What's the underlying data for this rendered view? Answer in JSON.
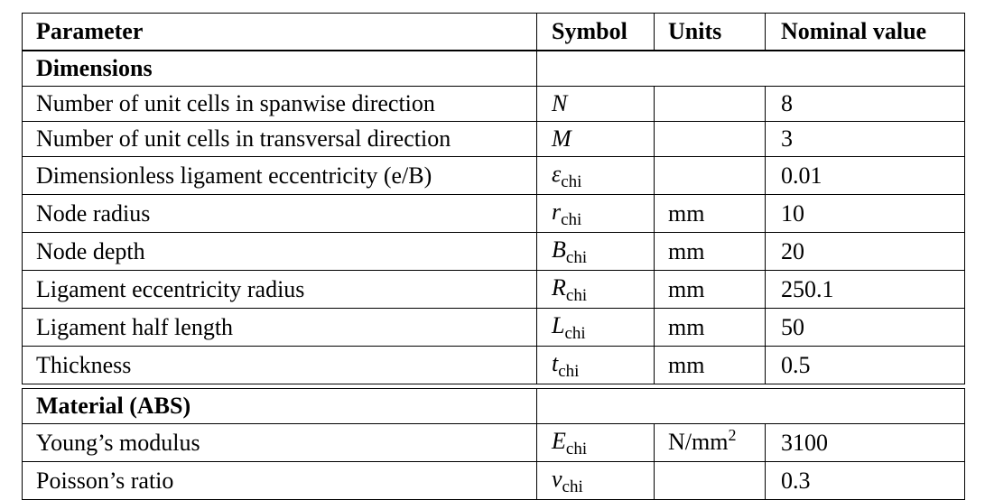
{
  "header": {
    "parameter": "Parameter",
    "symbol": "Symbol",
    "units": "Units",
    "nominal_value": "Nominal value"
  },
  "sections": [
    {
      "title": "Dimensions",
      "rows": [
        {
          "parameter": "Number of unit cells in spanwise direction",
          "symbol": "N",
          "symbol_sub": "",
          "units": "",
          "units_sup": "",
          "value": "8"
        },
        {
          "parameter": "Number of unit cells in transversal direction",
          "symbol": "M",
          "symbol_sub": "",
          "units": "",
          "units_sup": "",
          "value": "3"
        },
        {
          "parameter": "Dimensionless ligament eccentricity (e/B)",
          "symbol": "ε",
          "symbol_sub": "chi",
          "units": "",
          "units_sup": "",
          "value": "0.01"
        },
        {
          "parameter": "Node radius",
          "symbol": "r",
          "symbol_sub": "chi",
          "units": "mm",
          "units_sup": "",
          "value": "10"
        },
        {
          "parameter": "Node depth",
          "symbol": "B",
          "symbol_sub": "chi",
          "units": "mm",
          "units_sup": "",
          "value": "20"
        },
        {
          "parameter": "Ligament eccentricity radius",
          "symbol": "R",
          "symbol_sub": "chi",
          "units": "mm",
          "units_sup": "",
          "value": "250.1"
        },
        {
          "parameter": "Ligament half length",
          "symbol": "L",
          "symbol_sub": "chi",
          "units": "mm",
          "units_sup": "",
          "value": "50"
        },
        {
          "parameter": "Thickness",
          "symbol": "t",
          "symbol_sub": "chi",
          "units": "mm",
          "units_sup": "",
          "value": "0.5"
        }
      ]
    },
    {
      "title": "Material (ABS)",
      "rows": [
        {
          "parameter": "Young’s modulus",
          "symbol": "E",
          "symbol_sub": "chi",
          "units": "N/mm",
          "units_sup": "2",
          "value": "3100"
        },
        {
          "parameter": "Poisson’s ratio",
          "symbol": "ν",
          "symbol_sub": "chi",
          "units": "",
          "units_sup": "",
          "value": "0.3"
        }
      ]
    }
  ]
}
